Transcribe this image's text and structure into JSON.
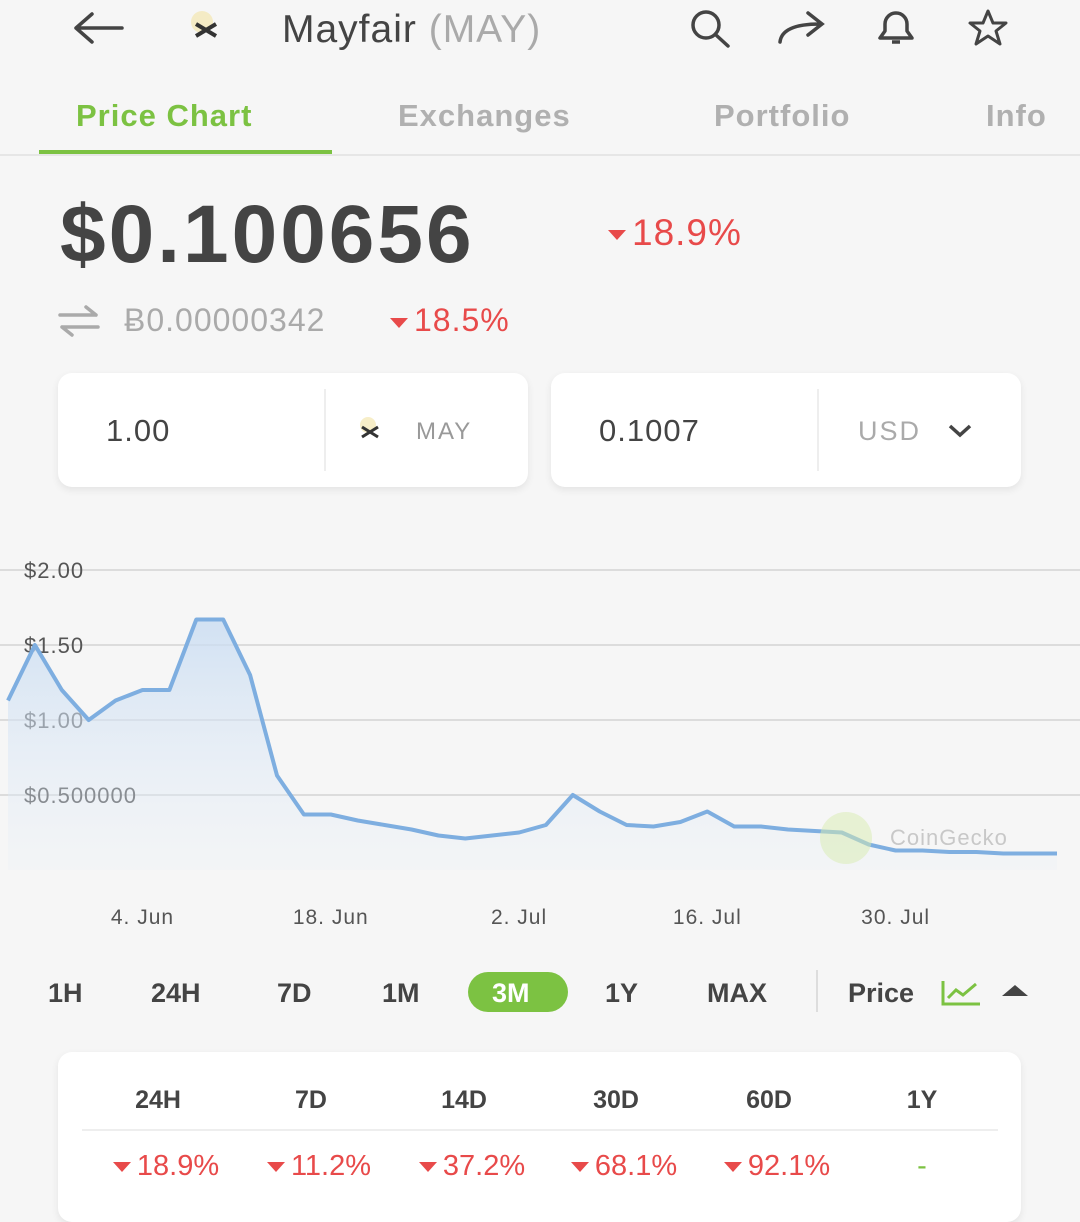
{
  "header": {
    "title": "Mayfair",
    "symbol": "(MAY)"
  },
  "tabs": [
    "Price Chart",
    "Exchanges",
    "Portfolio",
    "Info"
  ],
  "price": {
    "usd": "$0.100656",
    "usd_change": "18.9%",
    "btc": "Ƀ0.00000342",
    "btc_change": "18.5%"
  },
  "converter": {
    "amount": "1.00",
    "coin": "MAY",
    "value": "0.1007",
    "currency": "USD"
  },
  "chart_data": {
    "type": "line",
    "x": [
      "25. May",
      "27. May",
      "29. May",
      "31. May",
      "2. Jun",
      "4. Jun",
      "6. Jun",
      "8. Jun",
      "10. Jun",
      "12. Jun",
      "14. Jun",
      "16. Jun",
      "18. Jun",
      "20. Jun",
      "22. Jun",
      "24. Jun",
      "26. Jun",
      "28. Jun",
      "30. Jun",
      "2. Jul",
      "4. Jul",
      "6. Jul",
      "8. Jul",
      "10. Jul",
      "12. Jul",
      "14. Jul",
      "16. Jul",
      "18. Jul",
      "20. Jul",
      "22. Jul",
      "24. Jul",
      "26. Jul",
      "28. Jul",
      "30. Jul",
      "1. Aug",
      "3. Aug",
      "5. Aug",
      "7. Aug",
      "9. Aug",
      "11. Aug"
    ],
    "series": [
      {
        "color": "#7eaee0",
        "values": [
          1.13,
          1.5,
          1.2,
          1.0,
          1.13,
          1.2,
          1.2,
          1.67,
          1.67,
          1.3,
          0.63,
          0.37,
          0.37,
          0.33,
          0.3,
          0.27,
          0.23,
          0.21,
          0.23,
          0.25,
          0.3,
          0.5,
          0.39,
          0.3,
          0.29,
          0.32,
          0.39,
          0.29,
          0.29,
          0.27,
          0.26,
          0.25,
          0.17,
          0.13,
          0.13,
          0.12,
          0.12,
          0.11,
          0.11,
          0.11
        ]
      }
    ],
    "ylim": [
      0,
      2
    ],
    "yticks": [
      {
        "value": 0.5,
        "label": "$0.500000"
      },
      {
        "value": 1,
        "label": "$1.00"
      },
      {
        "value": 1.5,
        "label": "$1.50"
      },
      {
        "value": 2,
        "label": "$2.00"
      }
    ],
    "xticks": [
      "4. Jun",
      "18. Jun",
      "2. Jul",
      "16. Jul",
      "30. Jul"
    ],
    "grid": true
  },
  "watermark": "CoinGecko",
  "ranges": [
    "1H",
    "24H",
    "7D",
    "1M",
    "3M",
    "1Y",
    "MAX"
  ],
  "price_toggle": "Price",
  "table": {
    "header": [
      "24H",
      "7D",
      "14D",
      "30D",
      "60D",
      "1Y"
    ],
    "row": [
      "18.9%",
      "11.2%",
      "37.2%",
      "68.1%",
      "92.1%",
      "-"
    ]
  }
}
